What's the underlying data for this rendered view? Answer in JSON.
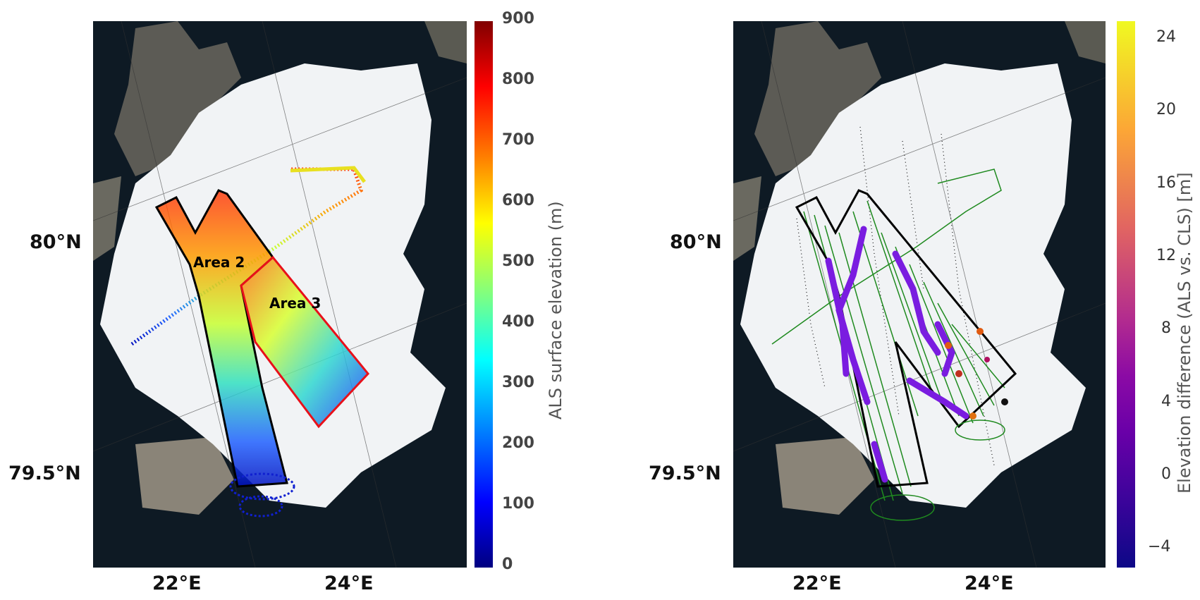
{
  "left_panel": {
    "lat_labels": [
      "80°N",
      "79.5°N"
    ],
    "lon_labels": [
      "22°E",
      "24°E"
    ],
    "area_labels": [
      "Area 2",
      "Area 3"
    ],
    "colorbar": {
      "title": "ALS surface elevation (m)",
      "ticks": [
        "900",
        "800",
        "700",
        "600",
        "500",
        "400",
        "300",
        "200",
        "100",
        "0"
      ],
      "colormap": "jet",
      "range": [
        0,
        900
      ]
    }
  },
  "right_panel": {
    "lat_labels": [
      "80°N",
      "79.5°N"
    ],
    "lon_labels": [
      "22°E",
      "24°E"
    ],
    "colorbar": {
      "title": "Elevation difference (ALS vs. CLS) [m]",
      "ticks": [
        "24",
        "20",
        "16",
        "12",
        "8",
        "4",
        "0",
        "−4"
      ],
      "colormap": "plasma",
      "range": [
        -5,
        25
      ]
    }
  },
  "colors": {
    "ice": "#f2f4f6",
    "sea": "#12222e",
    "rock": "#5a5a55",
    "outline_black": "#000000",
    "outline_red": "#e8101a",
    "track_green": "#1f8a1f",
    "diff_purple": "#7a1ce0"
  }
}
